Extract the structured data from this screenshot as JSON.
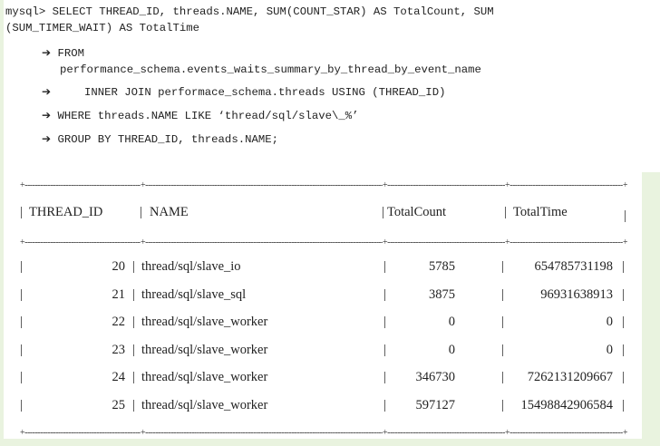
{
  "query": {
    "line1": "mysql> SELECT THREAD_ID, threads.NAME, SUM(COUNT_STAR) AS TotalCount, SUM",
    "line2": "(SUM_TIMER_WAIT) AS TotalTime",
    "arrow": "➔",
    "from": "FROM",
    "from_table": "performance_schema.events_waits_summary_by_thread_by_event_name",
    "join": "   INNER JOIN performace_schema.threads USING (THREAD_ID)",
    "where": "WHERE threads.NAME LIKE ‘thread/sql/slave\\_%’",
    "group": "GROUP BY THREAD_ID, threads.NAME;"
  },
  "table": {
    "headers": [
      "THREAD_ID",
      "NAME",
      "TotalCount",
      "TotalTime"
    ],
    "rows": [
      {
        "id": "20",
        "name": "thread/sql/slave_io",
        "count": "5785",
        "time": "654785731198"
      },
      {
        "id": "21",
        "name": "thread/sql/slave_sql",
        "count": "3875",
        "time": "96931638913"
      },
      {
        "id": "22",
        "name": "thread/sql/slave_worker",
        "count": "0",
        "time": "0"
      },
      {
        "id": "23",
        "name": "thread/sql/slave_worker",
        "count": "0",
        "time": "0"
      },
      {
        "id": "24",
        "name": "thread/sql/slave_worker",
        "count": "346730",
        "time": "7262131209667"
      },
      {
        "id": "25",
        "name": "thread/sql/slave_worker",
        "count": "597127",
        "time": "15498842906584"
      }
    ]
  },
  "colors": {
    "border_green": "#e9f3df"
  }
}
